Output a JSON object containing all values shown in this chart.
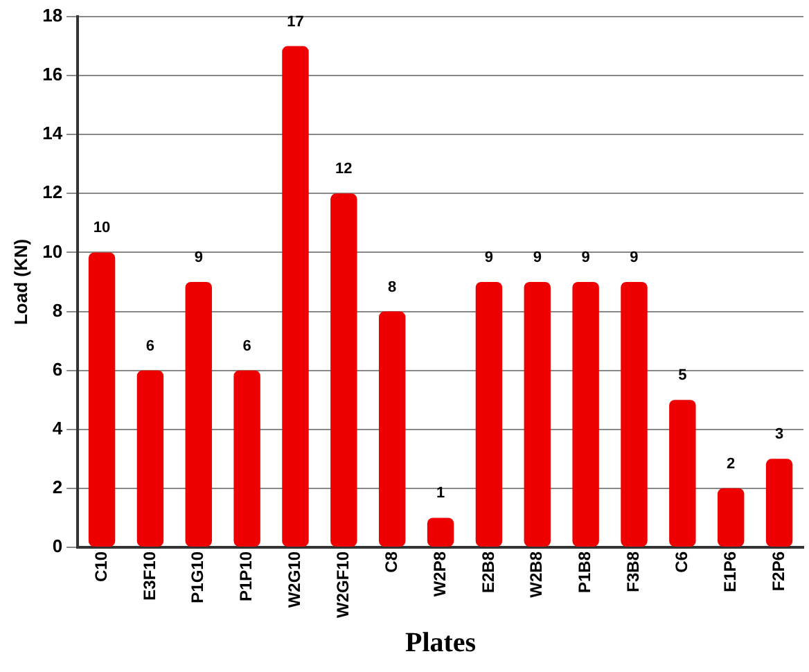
{
  "chart_data": {
    "type": "bar",
    "xlabel": "Plates",
    "ylabel": "Load (KN)",
    "categories": [
      "C10",
      "E3F10",
      "P1G10",
      "P1P10",
      "W2G10",
      "W2GF10",
      "C8",
      "W2P8",
      "E2B8",
      "W2B8",
      "P1B8",
      "F3B8",
      "C6",
      "E1P6",
      "F2P6"
    ],
    "values": [
      10,
      6,
      9,
      6,
      17,
      12,
      8,
      1,
      9,
      9,
      9,
      9,
      5,
      2,
      3
    ],
    "color": "#ee0000",
    "ylim": [
      0,
      18
    ],
    "yticks": [
      0,
      2,
      4,
      6,
      8,
      10,
      12,
      14,
      16,
      18
    ],
    "grid": "y",
    "data_labels": true
  }
}
